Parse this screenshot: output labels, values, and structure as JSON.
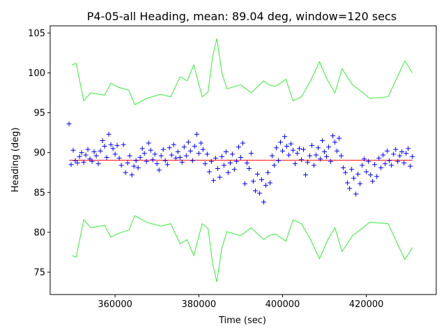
{
  "chart_data": {
    "type": "scatter",
    "title": "P4-05-all Heading, mean: 89.04 deg, window=120 secs",
    "xlabel": "Time (sec)",
    "ylabel": "Heading (deg)",
    "xlim": [
      344500,
      436700
    ],
    "ylim": [
      72.2,
      105.9
    ],
    "xticks": [
      360000,
      380000,
      400000,
      420000
    ],
    "xtick_labels": [
      "360000",
      "380000",
      "400000",
      "420000"
    ],
    "yticks": [
      75,
      80,
      85,
      90,
      95,
      100,
      105
    ],
    "ytick_labels": [
      "75",
      "80",
      "85",
      "90",
      "95",
      "100",
      "105"
    ],
    "grid": false,
    "colors": {
      "points": "#0000ff",
      "mean": "#ff0000",
      "envelope": "#33ee33"
    },
    "mean": 89.04,
    "mean_range": [
      349000,
      431000
    ],
    "points": {
      "x_start": 349000,
      "x_step": 500,
      "y": [
        93.6,
        88.5,
        90.3,
        89.0,
        88.7,
        89.5,
        90.0,
        88.8,
        89.7,
        90.4,
        89.2,
        88.9,
        90.1,
        89.6,
        88.6,
        90.2,
        91.5,
        90.8,
        89.4,
        92.3,
        91.0,
        90.5,
        89.8,
        90.9,
        89.3,
        88.4,
        91.0,
        87.5,
        88.7,
        89.6,
        87.2,
        88.3,
        89.0,
        88.1,
        89.4,
        90.5,
        89.9,
        88.9,
        91.2,
        90.3,
        89.1,
        89.8,
        88.6,
        87.8,
        89.6,
        90.4,
        89.0,
        88.5,
        90.6,
        89.7,
        91.0,
        89.3,
        90.1,
        89.4,
        88.8,
        90.7,
        89.6,
        91.3,
        90.2,
        89.0,
        90.8,
        92.3,
        89.9,
        91.2,
        90.4,
        88.6,
        89.8,
        87.6,
        88.9,
        86.5,
        89.3,
        88.0,
        86.9,
        89.5,
        88.4,
        90.1,
        87.5,
        88.7,
        89.8,
        87.9,
        88.9,
        90.7,
        89.4,
        91.2,
        86.1,
        88.7,
        88.0,
        89.9,
        86.4,
        85.2,
        87.3,
        84.9,
        86.6,
        83.8,
        85.9,
        87.5,
        86.2,
        89.6,
        88.4,
        90.6,
        89.0,
        91.3,
        90.2,
        92.0,
        90.8,
        89.7,
        91.1,
        90.3,
        88.6,
        89.9,
        90.5,
        89.1,
        90.4,
        87.2,
        88.8,
        89.6,
        90.9,
        88.4,
        89.7,
        90.6,
        89.2,
        91.5,
        90.1,
        89.5,
        90.7,
        88.9,
        92.1,
        91.3,
        90.2,
        91.8,
        89.6,
        88.1,
        87.5,
        86.2,
        85.5,
        87.9,
        86.8,
        84.8,
        87.3,
        86.1,
        88.4,
        89.2,
        87.6,
        88.9,
        87.2,
        86.4,
        88.5,
        87.0,
        89.3,
        88.1,
        89.7,
        88.6,
        90.2,
        89.0,
        88.4,
        89.8,
        90.4,
        88.9,
        89.6,
        90.1,
        88.7,
        89.9,
        90.5,
        88.3,
        89.5
      ]
    },
    "series": [
      {
        "name": "upper",
        "x": [
          349700,
          350700,
          352500,
          354200,
          357500,
          359000,
          360800,
          363300,
          364700,
          367500,
          370800,
          373300,
          375500,
          377200,
          378800,
          380800,
          382200,
          383300,
          384300,
          385500,
          386700,
          390000,
          392500,
          395500,
          396700,
          398300,
          400800,
          402500,
          404500,
          406700,
          408800,
          410800,
          412500,
          414200,
          416700,
          419200,
          420800,
          425200,
          429200,
          431000
        ],
        "y": [
          101.0,
          101.2,
          96.5,
          97.5,
          97.2,
          98.7,
          98.2,
          97.8,
          96.0,
          96.8,
          97.3,
          97.0,
          99.5,
          99.0,
          101.0,
          97.0,
          97.6,
          102.0,
          104.3,
          100.0,
          98.0,
          98.5,
          97.5,
          99.0,
          98.5,
          98.3,
          99.2,
          96.5,
          97.0,
          99.0,
          101.4,
          99.0,
          97.5,
          100.5,
          98.5,
          97.5,
          96.8,
          97.0,
          101.5,
          100.0
        ]
      },
      {
        "name": "lower",
        "x": [
          349700,
          350700,
          352500,
          354200,
          357500,
          359000,
          360800,
          363300,
          364700,
          367500,
          370800,
          373300,
          375500,
          377200,
          378800,
          380800,
          382200,
          383300,
          384300,
          385500,
          386700,
          390000,
          392500,
          395500,
          396700,
          398300,
          400800,
          402500,
          404500,
          406700,
          408800,
          410800,
          412500,
          414200,
          416700,
          419200,
          420800,
          425200,
          429200,
          431000
        ],
        "y": [
          77.08,
          76.88,
          81.58,
          80.58,
          80.88,
          79.38,
          79.88,
          80.28,
          82.08,
          81.28,
          80.78,
          81.08,
          78.58,
          79.08,
          77.08,
          81.08,
          80.48,
          76.08,
          73.78,
          78.08,
          80.08,
          79.58,
          80.58,
          79.08,
          79.58,
          79.78,
          78.88,
          81.58,
          81.08,
          79.08,
          76.68,
          79.08,
          80.58,
          77.58,
          79.58,
          80.58,
          81.28,
          81.08,
          76.58,
          78.08
        ]
      }
    ]
  }
}
